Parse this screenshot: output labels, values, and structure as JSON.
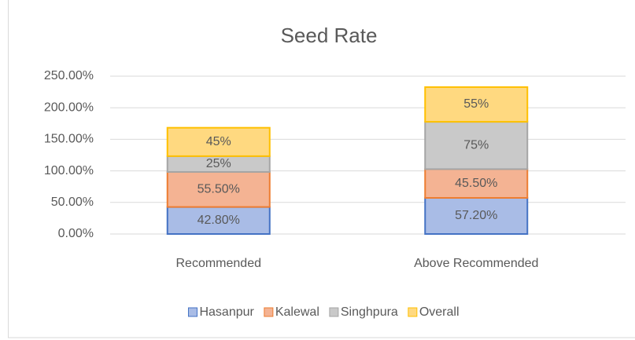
{
  "chart_data": {
    "type": "stacked_bar",
    "title": "Seed Rate",
    "categories": [
      "Recommended",
      "Above Recommended"
    ],
    "series": [
      {
        "name": "Hasanpur",
        "color": "#a9bce6",
        "edge": "#4472c4",
        "values": [
          42.8,
          57.2
        ],
        "value_labels": [
          "42.80%",
          "57.20%"
        ]
      },
      {
        "name": "Kalewal",
        "color": "#f4b393",
        "edge": "#ed7d31",
        "values": [
          55.5,
          45.5
        ],
        "value_labels": [
          "55.50%",
          "45.50%"
        ]
      },
      {
        "name": "Singhpura",
        "color": "#c9c9c9",
        "edge": "#a5a5a5",
        "values": [
          25,
          75
        ],
        "value_labels": [
          "25%",
          "75%"
        ]
      },
      {
        "name": "Overall",
        "color": "#ffd980",
        "edge": "#ffc000",
        "values": [
          45,
          55
        ],
        "value_labels": [
          "45%",
          "55%"
        ]
      }
    ],
    "ylim": [
      0,
      250
    ],
    "yticks": [
      {
        "value": 0,
        "label": "0.00%"
      },
      {
        "value": 50,
        "label": "50.00%"
      },
      {
        "value": 100,
        "label": "100.00%"
      },
      {
        "value": 150,
        "label": "150.00%"
      },
      {
        "value": 200,
        "label": "200.00%"
      },
      {
        "value": 250,
        "label": "250.00%"
      }
    ],
    "legend": "bottom"
  }
}
